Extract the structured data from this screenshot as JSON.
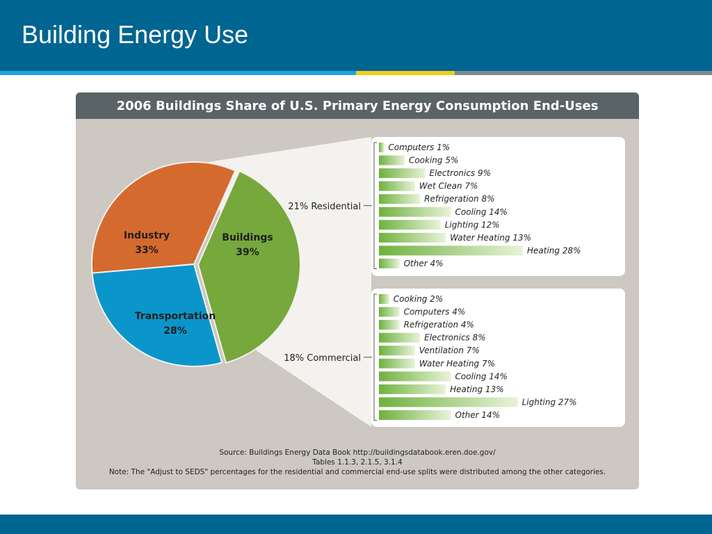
{
  "slide": {
    "title": "Building Energy Use"
  },
  "chart": {
    "title": "2006 Buildings Share of U.S. Primary Energy Consumption End-Uses",
    "source_line1": "Source: Buildings Energy Data Book http://buildingsdatabook.eren.doe.gov/",
    "source_line2": "Tables 1.1.3, 2.1.5, 3.1.4",
    "note": "Note: The \"Adjust to SEDS\" percentages for the residential and commercial end-use splits were distributed among the other categories."
  },
  "colors": {
    "header_blue": "#006591",
    "accent_blue": "#1fa3df",
    "accent_yellow": "#f2cc1a",
    "industry": "#d56a2e",
    "buildings": "#76a83c",
    "transportation": "#0a96cb",
    "bar_green": "#76b843"
  },
  "chart_data": [
    {
      "type": "pie",
      "slices": [
        {
          "label": "Industry",
          "value": 33,
          "value_label": "33%",
          "color": "#d56a2e"
        },
        {
          "label": "Buildings",
          "value": 39,
          "value_label": "39%",
          "color": "#76a83c"
        },
        {
          "label": "Transportation",
          "value": 28,
          "value_label": "28%",
          "color": "#0a96cb"
        }
      ]
    },
    {
      "type": "bar",
      "orientation": "horizontal",
      "group_label": "21% Residential",
      "categories": [
        "Computers",
        "Cooking",
        "Electronics",
        "Wet Clean",
        "Refrigeration",
        "Cooling",
        "Lighting",
        "Water Heating",
        "Heating",
        "Other"
      ],
      "values": [
        1,
        5,
        9,
        7,
        8,
        14,
        12,
        13,
        28,
        4
      ],
      "value_labels": [
        "1%",
        "5%",
        "9%",
        "7%",
        "8%",
        "14%",
        "12%",
        "13%",
        "28%",
        "4%"
      ]
    },
    {
      "type": "bar",
      "orientation": "horizontal",
      "group_label": "18% Commercial",
      "categories": [
        "Cooking",
        "Computers",
        "Refrigeration",
        "Electronics",
        "Ventilation",
        "Water Heating",
        "Cooling",
        "Heating",
        "Lighting",
        "Other"
      ],
      "values": [
        2,
        4,
        4,
        8,
        7,
        7,
        14,
        13,
        27,
        14
      ],
      "value_labels": [
        "2%",
        "4%",
        "4%",
        "8%",
        "7%",
        "7%",
        "14%",
        "13%",
        "27%",
        "14%"
      ]
    }
  ]
}
